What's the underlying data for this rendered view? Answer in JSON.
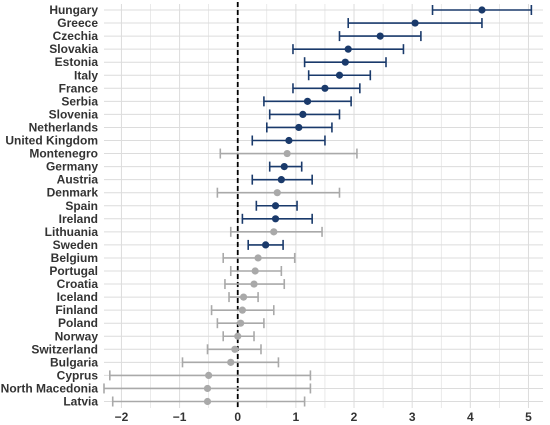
{
  "chart_data": {
    "type": "scatter",
    "title": "",
    "xlabel": "",
    "ylabel": "",
    "xlim": [
      -2.3,
      5.25
    ],
    "x_ticks": [
      -2,
      -1,
      0,
      1,
      2,
      3,
      4,
      5
    ],
    "grid": true,
    "reference_line": {
      "x": 0,
      "style": "dashed"
    },
    "colors": {
      "significant": "#1a3a6b",
      "not_significant": "#a9a9a9",
      "grid": "#dcdcdc",
      "reference": "#000000"
    },
    "series": [
      {
        "country": "Hungary",
        "estimate": 4.2,
        "lower": 3.35,
        "upper": 5.05,
        "significant": true
      },
      {
        "country": "Greece",
        "estimate": 3.05,
        "lower": 1.9,
        "upper": 4.2,
        "significant": true
      },
      {
        "country": "Czechia",
        "estimate": 2.45,
        "lower": 1.75,
        "upper": 3.15,
        "significant": true
      },
      {
        "country": "Slovakia",
        "estimate": 1.9,
        "lower": 0.95,
        "upper": 2.85,
        "significant": true
      },
      {
        "country": "Estonia",
        "estimate": 1.85,
        "lower": 1.15,
        "upper": 2.55,
        "significant": true
      },
      {
        "country": "Italy",
        "estimate": 1.75,
        "lower": 1.22,
        "upper": 2.28,
        "significant": true
      },
      {
        "country": "France",
        "estimate": 1.5,
        "lower": 0.95,
        "upper": 2.1,
        "significant": true
      },
      {
        "country": "Serbia",
        "estimate": 1.2,
        "lower": 0.45,
        "upper": 1.95,
        "significant": true
      },
      {
        "country": "Slovenia",
        "estimate": 1.12,
        "lower": 0.55,
        "upper": 1.75,
        "significant": true
      },
      {
        "country": "Netherlands",
        "estimate": 1.05,
        "lower": 0.5,
        "upper": 1.62,
        "significant": true
      },
      {
        "country": "United Kingdom",
        "estimate": 0.88,
        "lower": 0.25,
        "upper": 1.5,
        "significant": true
      },
      {
        "country": "Montenegro",
        "estimate": 0.85,
        "lower": -0.3,
        "upper": 2.05,
        "significant": false
      },
      {
        "country": "Germany",
        "estimate": 0.8,
        "lower": 0.55,
        "upper": 1.1,
        "significant": true
      },
      {
        "country": "Austria",
        "estimate": 0.75,
        "lower": 0.25,
        "upper": 1.28,
        "significant": true
      },
      {
        "country": "Denmark",
        "estimate": 0.68,
        "lower": -0.35,
        "upper": 1.75,
        "significant": false
      },
      {
        "country": "Spain",
        "estimate": 0.65,
        "lower": 0.32,
        "upper": 1.02,
        "significant": true
      },
      {
        "country": "Ireland",
        "estimate": 0.65,
        "lower": 0.08,
        "upper": 1.28,
        "significant": true
      },
      {
        "country": "Lithuania",
        "estimate": 0.62,
        "lower": -0.12,
        "upper": 1.45,
        "significant": false
      },
      {
        "country": "Sweden",
        "estimate": 0.48,
        "lower": 0.18,
        "upper": 0.78,
        "significant": true
      },
      {
        "country": "Belgium",
        "estimate": 0.35,
        "lower": -0.25,
        "upper": 0.98,
        "significant": false
      },
      {
        "country": "Portugal",
        "estimate": 0.3,
        "lower": -0.12,
        "upper": 0.75,
        "significant": false
      },
      {
        "country": "Croatia",
        "estimate": 0.28,
        "lower": -0.22,
        "upper": 0.8,
        "significant": false
      },
      {
        "country": "Iceland",
        "estimate": 0.1,
        "lower": -0.15,
        "upper": 0.35,
        "significant": false
      },
      {
        "country": "Finland",
        "estimate": 0.08,
        "lower": -0.45,
        "upper": 0.62,
        "significant": false
      },
      {
        "country": "Poland",
        "estimate": 0.05,
        "lower": -0.35,
        "upper": 0.45,
        "significant": false
      },
      {
        "country": "Norway",
        "estimate": 0.0,
        "lower": -0.25,
        "upper": 0.28,
        "significant": false
      },
      {
        "country": "Switzerland",
        "estimate": -0.05,
        "lower": -0.52,
        "upper": 0.4,
        "significant": false
      },
      {
        "country": "Bulgaria",
        "estimate": -0.12,
        "lower": -0.95,
        "upper": 0.7,
        "significant": false
      },
      {
        "country": "Cyprus",
        "estimate": -0.5,
        "lower": -2.2,
        "upper": 1.25,
        "significant": false
      },
      {
        "country": "North Macedonia",
        "estimate": -0.52,
        "lower": -2.3,
        "upper": 1.25,
        "significant": false
      },
      {
        "country": "Latvia",
        "estimate": -0.52,
        "lower": -2.15,
        "upper": 1.15,
        "significant": false
      }
    ]
  }
}
